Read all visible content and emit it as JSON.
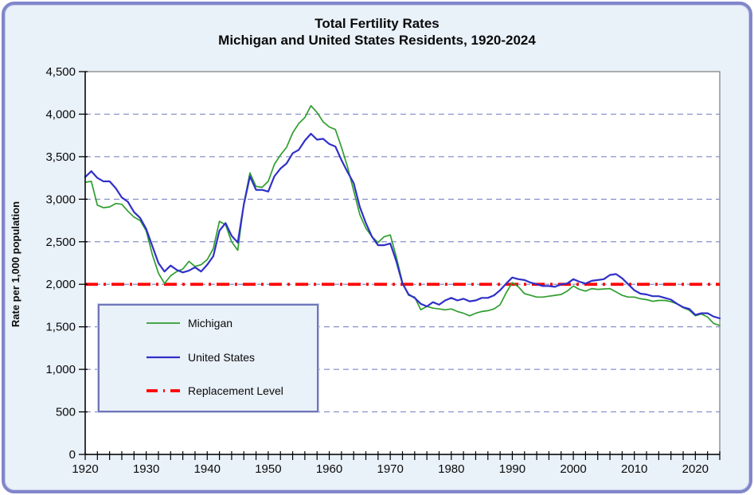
{
  "window": {
    "background_color": "#E9F1F9",
    "frame_border_color": "#8186CA",
    "plot_background": "#FFFFFF",
    "gridline_color": "#8A90C8"
  },
  "title": {
    "line1": "Total Fertility Rates",
    "line2": "Michigan and United States Residents, 1920-2024"
  },
  "chart_data": {
    "type": "line",
    "title": "Total Fertility Rates — Michigan and United States Residents, 1920-2024",
    "xlabel": "",
    "ylabel": "Rate per 1,000 population",
    "xlim": [
      1920,
      2024
    ],
    "ylim": [
      0,
      4500
    ],
    "grid": "horizontal-dashed",
    "legend_position": "lower-left",
    "y_ticks": {
      "values": [
        0,
        500,
        1000,
        1500,
        2000,
        2500,
        3000,
        3500,
        4000,
        4500
      ],
      "labels": [
        "0",
        "500",
        "1,000",
        "1,500",
        "2,000",
        "2,500",
        "3,000",
        "3,500",
        "4,000",
        "4,500"
      ]
    },
    "x_ticks": {
      "major_values": [
        1920,
        1930,
        1940,
        1950,
        1960,
        1970,
        1980,
        1990,
        2000,
        2010,
        2020
      ],
      "major_labels": [
        "1920",
        "1930",
        "1940",
        "1950",
        "1960",
        "1970",
        "1980",
        "1990",
        "2000",
        "2010",
        "2020"
      ],
      "minor_step": 2
    },
    "years": [
      1920,
      1921,
      1922,
      1923,
      1924,
      1925,
      1926,
      1927,
      1928,
      1929,
      1930,
      1931,
      1932,
      1933,
      1934,
      1935,
      1936,
      1937,
      1938,
      1939,
      1940,
      1941,
      1942,
      1943,
      1944,
      1945,
      1946,
      1947,
      1948,
      1949,
      1950,
      1951,
      1952,
      1953,
      1954,
      1955,
      1956,
      1957,
      1958,
      1959,
      1960,
      1961,
      1962,
      1963,
      1964,
      1965,
      1966,
      1967,
      1968,
      1969,
      1970,
      1971,
      1972,
      1973,
      1974,
      1975,
      1976,
      1977,
      1978,
      1979,
      1980,
      1981,
      1982,
      1983,
      1984,
      1985,
      1986,
      1987,
      1988,
      1989,
      1990,
      1991,
      1992,
      1993,
      1994,
      1995,
      1996,
      1997,
      1998,
      1999,
      2000,
      2001,
      2002,
      2003,
      2004,
      2005,
      2006,
      2007,
      2008,
      2009,
      2010,
      2011,
      2012,
      2013,
      2014,
      2015,
      2016,
      2017,
      2018,
      2019,
      2020,
      2021,
      2022,
      2023,
      2024
    ],
    "series": [
      {
        "name": "Michigan",
        "color": "#2F9E2F",
        "width": 1.7,
        "dash": null,
        "values": [
          3200,
          3210,
          2930,
          2900,
          2910,
          2950,
          2940,
          2860,
          2790,
          2750,
          2630,
          2350,
          2130,
          2010,
          2100,
          2150,
          2180,
          2270,
          2210,
          2230,
          2290,
          2420,
          2740,
          2700,
          2500,
          2400,
          2950,
          3310,
          3150,
          3140,
          3210,
          3410,
          3520,
          3610,
          3780,
          3890,
          3960,
          4100,
          4020,
          3910,
          3850,
          3820,
          3610,
          3380,
          3100,
          2820,
          2660,
          2560,
          2490,
          2560,
          2580,
          2320,
          2020,
          1870,
          1850,
          1700,
          1740,
          1720,
          1710,
          1700,
          1710,
          1680,
          1660,
          1630,
          1660,
          1680,
          1690,
          1710,
          1760,
          1900,
          2020,
          1970,
          1890,
          1870,
          1850,
          1850,
          1860,
          1870,
          1880,
          1920,
          1980,
          1940,
          1920,
          1950,
          1940,
          1945,
          1950,
          1910,
          1870,
          1850,
          1850,
          1830,
          1820,
          1800,
          1810,
          1810,
          1795,
          1770,
          1725,
          1695,
          1630,
          1650,
          1615,
          1540,
          1515
        ]
      },
      {
        "name": "United States",
        "color": "#3030C8",
        "width": 2.2,
        "dash": null,
        "values": [
          3260,
          3330,
          3250,
          3210,
          3210,
          3130,
          3020,
          2970,
          2850,
          2780,
          2650,
          2450,
          2250,
          2150,
          2220,
          2170,
          2140,
          2160,
          2200,
          2150,
          2230,
          2330,
          2630,
          2720,
          2570,
          2490,
          2940,
          3270,
          3110,
          3110,
          3090,
          3270,
          3360,
          3420,
          3540,
          3580,
          3690,
          3770,
          3700,
          3710,
          3650,
          3620,
          3460,
          3320,
          3190,
          2910,
          2720,
          2560,
          2460,
          2460,
          2480,
          2270,
          2010,
          1880,
          1840,
          1770,
          1740,
          1790,
          1760,
          1810,
          1840,
          1810,
          1830,
          1800,
          1810,
          1840,
          1840,
          1870,
          1930,
          2010,
          2080,
          2060,
          2050,
          2020,
          2000,
          1980,
          1980,
          1970,
          2000,
          2010,
          2060,
          2030,
          2010,
          2040,
          2050,
          2060,
          2110,
          2120,
          2070,
          2000,
          1930,
          1890,
          1880,
          1860,
          1860,
          1840,
          1820,
          1770,
          1730,
          1710,
          1640,
          1660,
          1660,
          1620,
          1600
        ]
      },
      {
        "name": "Replacement Level",
        "color": "#FF0000",
        "width": 3.8,
        "dash": [
          16,
          7,
          3,
          7
        ],
        "constant_value": 2000
      }
    ]
  }
}
